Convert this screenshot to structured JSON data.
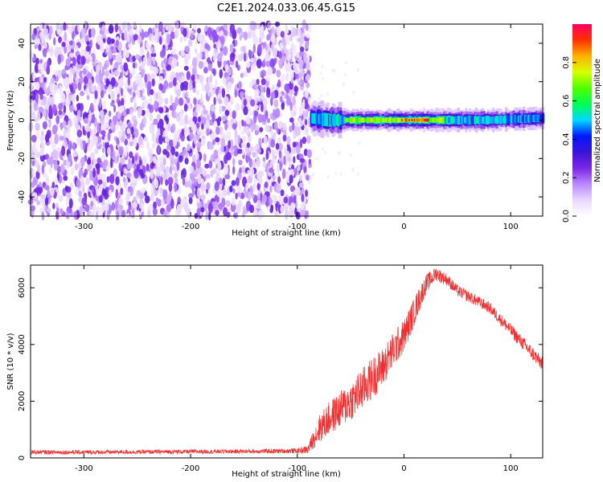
{
  "figure": {
    "title": "C2E1.2024.033.06.45.G15"
  },
  "chart_data": [
    {
      "type": "heatmap",
      "xlabel": "Height of straight line (km)",
      "ylabel": "Frequency (Hz)",
      "xlim": [
        -350,
        130
      ],
      "ylim": [
        -50,
        50
      ],
      "xticks": [
        "-300",
        "-200",
        "-100",
        "0",
        "100"
      ],
      "xtick_values": [
        -300,
        -200,
        -100,
        0,
        100
      ],
      "yticks": [
        "-40",
        "-20",
        "0",
        "20",
        "40"
      ],
      "ytick_values": [
        -40,
        -20,
        0,
        20,
        40
      ],
      "grid": false,
      "colorbar": {
        "label": "Normalized spectral amplitude",
        "range": [
          0.0,
          1.0
        ],
        "ticks": [
          "0.0",
          "0.2",
          "0.4",
          "0.6",
          "0.8"
        ],
        "tick_values": [
          0.0,
          0.2,
          0.4,
          0.6,
          0.8
        ],
        "colormap": [
          "#ffffff",
          "#e9d7ff",
          "#b888ff",
          "#7a28e6",
          "#3b14d8",
          "#0018ff",
          "#00d8ff",
          "#00ff50",
          "#50ff00",
          "#d8ff00",
          "#ffb000",
          "#ff3000",
          "#ff0060"
        ]
      },
      "noise_region": {
        "x": [
          -350,
          -88
        ],
        "amplitude": [
          0.05,
          0.25
        ]
      },
      "signal_ridge": {
        "x": [
          -88,
          130
        ],
        "centre_frequency": [
          1,
          0,
          0,
          0,
          0,
          0,
          0,
          0,
          0,
          0,
          1
        ],
        "x_samples": [
          -88,
          -70,
          -50,
          -30,
          -10,
          0,
          20,
          40,
          60,
          80,
          130
        ],
        "peak_amplitude": [
          0.6,
          0.55,
          0.7,
          0.8,
          0.7,
          0.95,
          0.9,
          0.6,
          0.55,
          0.5,
          0.45
        ]
      }
    },
    {
      "type": "line",
      "xlabel": "Height of straight line (km)",
      "ylabel": "SNR (10 * v/v)",
      "xlim": [
        -350,
        130
      ],
      "ylim": [
        0,
        6800
      ],
      "xticks": [
        "-300",
        "-200",
        "-100",
        "0",
        "100"
      ],
      "xtick_values": [
        -300,
        -200,
        -100,
        0,
        100
      ],
      "yticks": [
        "0",
        "2000",
        "4000",
        "6000"
      ],
      "ytick_values": [
        0,
        2000,
        4000,
        6000
      ],
      "grid": false,
      "series": [
        {
          "color": "#f03030",
          "x": [
            -350,
            -300,
            -250,
            -200,
            -150,
            -100,
            -90,
            -80,
            -70,
            -60,
            -50,
            -40,
            -30,
            -20,
            -10,
            0,
            10,
            20,
            30,
            40,
            50,
            60,
            70,
            80,
            90,
            100,
            110,
            120,
            130
          ],
          "y": [
            200,
            200,
            210,
            220,
            230,
            250,
            300,
            1000,
            1400,
            1700,
            2000,
            2400,
            2800,
            3200,
            3800,
            4300,
            5200,
            6100,
            6500,
            6300,
            5900,
            5700,
            5500,
            5300,
            4900,
            4500,
            4100,
            3700,
            3300
          ],
          "spread": [
            150,
            150,
            150,
            150,
            150,
            180,
            300,
            1000,
            1200,
            1300,
            1400,
            1500,
            1500,
            1400,
            1300,
            1200,
            1000,
            700,
            500,
            450,
            420,
            400,
            400,
            400,
            420,
            450,
            480,
            500,
            500
          ]
        }
      ]
    }
  ]
}
